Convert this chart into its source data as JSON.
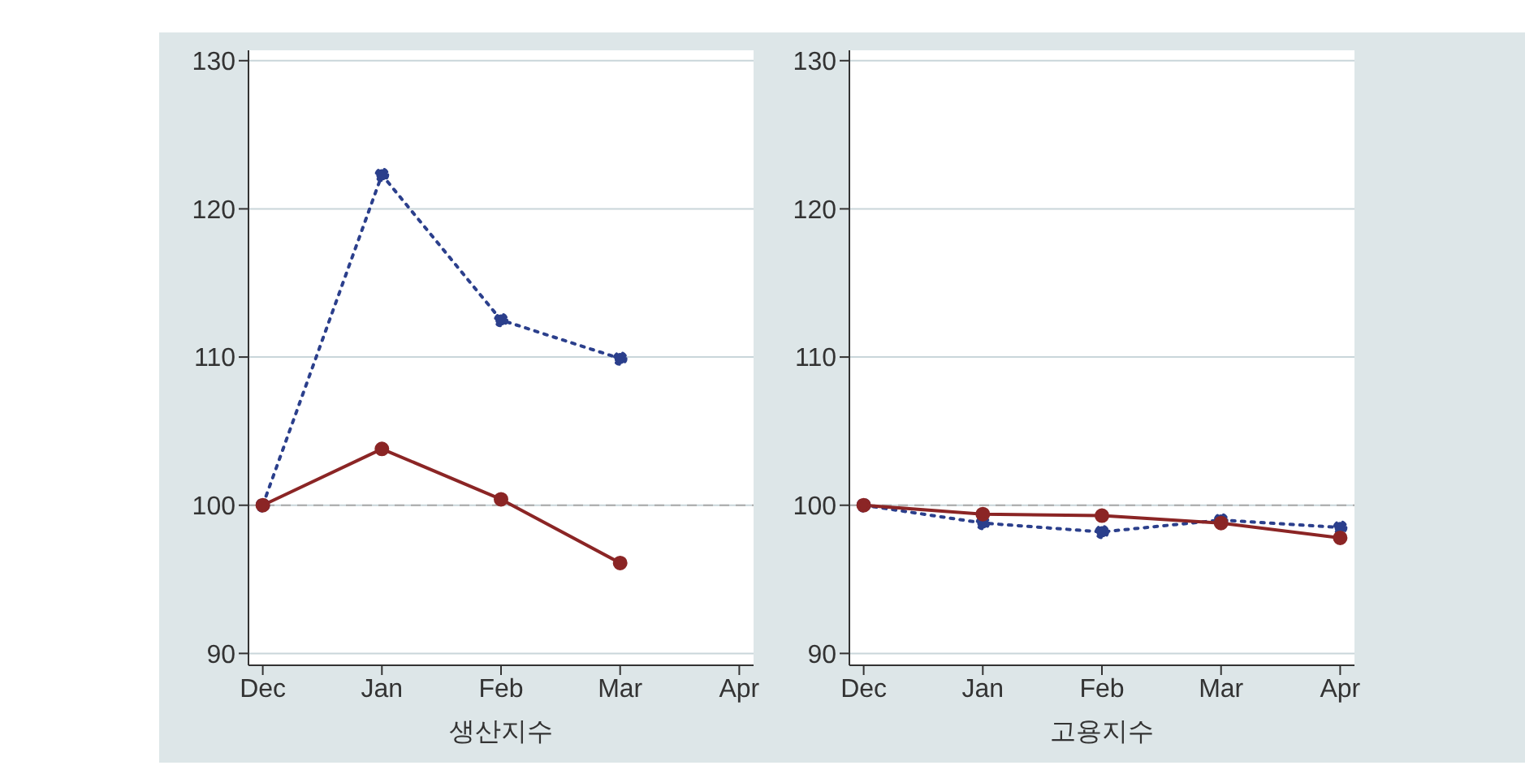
{
  "chart_data": [
    {
      "type": "line",
      "xlabel": "생산지수",
      "categories": [
        "Dec",
        "Jan",
        "Feb",
        "Mar",
        "Apr"
      ],
      "ylim": [
        89.2,
        130.7
      ],
      "yticks": [
        90,
        100,
        110,
        120,
        130
      ],
      "grid": "y",
      "marker": "circle",
      "ref_lines": [
        {
          "axis": "y",
          "value": 100,
          "color": "#aaaaaa",
          "line_style": "dashed"
        }
      ],
      "series": [
        {
          "color": "#2b3f8c",
          "line_style": "dotted",
          "values": [
            100,
            122.3,
            112.5,
            109.9,
            null
          ]
        },
        {
          "color": "#8b2525",
          "line_style": "solid",
          "values": [
            100,
            103.8,
            100.4,
            96.1,
            null
          ]
        }
      ]
    },
    {
      "type": "line",
      "xlabel": "고용지수",
      "categories": [
        "Dec",
        "Jan",
        "Feb",
        "Mar",
        "Apr"
      ],
      "ylim": [
        89.2,
        130.7
      ],
      "yticks": [
        90,
        100,
        110,
        120,
        130
      ],
      "grid": "y",
      "marker": "circle",
      "ref_lines": [
        {
          "axis": "y",
          "value": 100,
          "color": "#aaaaaa",
          "line_style": "dashed"
        }
      ],
      "series": [
        {
          "color": "#2b3f8c",
          "line_style": "dotted",
          "values": [
            100,
            98.8,
            98.2,
            99.0,
            98.5
          ]
        },
        {
          "color": "#8b2525",
          "line_style": "solid",
          "values": [
            100,
            99.4,
            99.3,
            98.8,
            97.8
          ]
        }
      ]
    }
  ]
}
